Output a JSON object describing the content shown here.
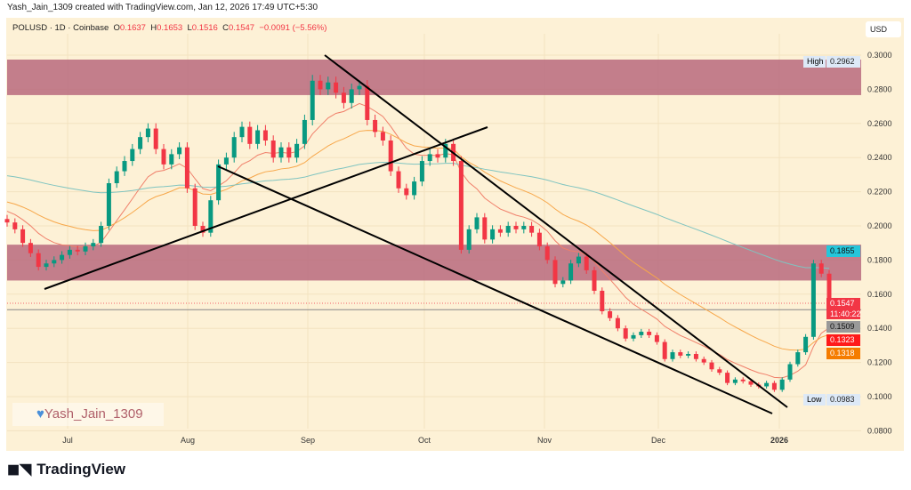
{
  "credit": "Yash_Jain_1309 created with TradingView.com, Jan 12, 2026 17:49 UTC+5:30",
  "legend": {
    "symbol": "POLUSD · 1D · Coinbase",
    "o_label": "O",
    "o": "0.1637",
    "h_label": "H",
    "h": "0.1653",
    "l_label": "L",
    "l": "0.1516",
    "c_label": "C",
    "c": "0.1547",
    "change": "−0.0091 (−5.56%)"
  },
  "currency": "USD",
  "watermark": "Yash_Jain_1309",
  "brand": "TradingView",
  "colors": {
    "up": "#089981",
    "down": "#f23645",
    "zone": "#b86a7e",
    "ma_fast": "#f07f6a",
    "ma_mid": "#f7a74a",
    "ma_slow": "#7fc4c0",
    "background": "#fdf1d6"
  },
  "price_axis": {
    "ticks": [
      "0.3000",
      "0.2800",
      "0.2600",
      "0.2400",
      "0.2200",
      "0.2000",
      "0.1800",
      "0.1600",
      "0.1400",
      "0.1200",
      "0.1000",
      "0.0800"
    ]
  },
  "time_axis": {
    "ticks": [
      "Jul",
      "Aug",
      "Sep",
      "Oct",
      "Nov",
      "Dec",
      "2026"
    ]
  },
  "labels": {
    "high": {
      "text": "High",
      "value": "0.2962"
    },
    "low": {
      "text": "Low",
      "value": "0.0983"
    },
    "ma_slow": "0.1855",
    "last_price": "0.1547",
    "countdown": "11:40:22",
    "horizontal_line": "0.1509",
    "ma_fast": "0.1323",
    "ma_mid": "0.1318"
  },
  "chart_data": {
    "type": "candlestick",
    "interval": "1D",
    "range": [
      "Jun 15 2025",
      "Jan 12 2026"
    ],
    "ylim": [
      0.08,
      0.3
    ],
    "approx_closes_every_2_days": [
      0.202,
      0.198,
      0.19,
      0.184,
      0.176,
      0.178,
      0.18,
      0.183,
      0.186,
      0.185,
      0.188,
      0.19,
      0.2,
      0.225,
      0.232,
      0.238,
      0.245,
      0.252,
      0.257,
      0.245,
      0.236,
      0.242,
      0.246,
      0.222,
      0.2,
      0.196,
      0.215,
      0.236,
      0.24,
      0.252,
      0.258,
      0.248,
      0.256,
      0.25,
      0.24,
      0.246,
      0.24,
      0.248,
      0.262,
      0.285,
      0.28,
      0.284,
      0.278,
      0.272,
      0.28,
      0.282,
      0.262,
      0.255,
      0.25,
      0.232,
      0.222,
      0.218,
      0.226,
      0.238,
      0.242,
      0.24,
      0.248,
      0.238,
      0.186,
      0.198,
      0.205,
      0.192,
      0.198,
      0.196,
      0.2,
      0.198,
      0.2,
      0.196,
      0.188,
      0.18,
      0.166,
      0.168,
      0.178,
      0.182,
      0.174,
      0.162,
      0.15,
      0.146,
      0.14,
      0.134,
      0.136,
      0.138,
      0.136,
      0.132,
      0.122,
      0.126,
      0.124,
      0.125,
      0.122,
      0.12,
      0.116,
      0.114,
      0.108,
      0.11,
      0.109,
      0.107,
      0.106,
      0.108,
      0.104,
      0.11,
      0.119,
      0.126,
      0.135,
      0.178,
      0.172,
      0.1547
    ],
    "zones": [
      [
        0.2766,
        0.2974
      ],
      [
        0.168,
        0.189
      ]
    ],
    "horizontal_line": 0.1509
  }
}
